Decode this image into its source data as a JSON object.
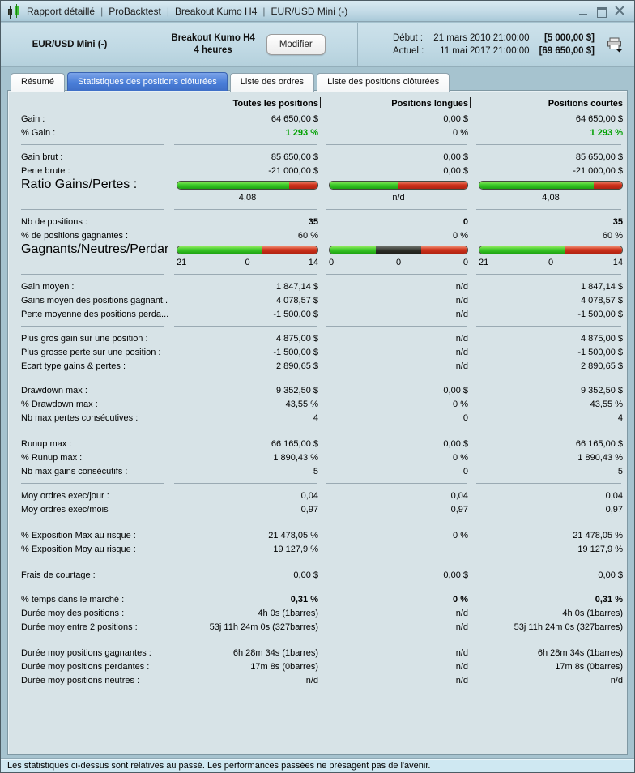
{
  "window": {
    "title_segments": [
      "Rapport détaillé",
      "ProBacktest",
      "Breakout Kumo H4",
      "EUR/USD Mini (-)"
    ],
    "title_separator": "|"
  },
  "header": {
    "instrument": "EUR/USD Mini (-)",
    "system_name": "Breakout Kumo H4",
    "timeframe": "4 heures",
    "modify_button": "Modifier",
    "start_label": "Début :",
    "start_date": "21 mars 2010 21:00:00",
    "start_equity": "[5 000,00 $]",
    "current_label": "Actuel :",
    "current_date": "11 mai 2017 21:00:00",
    "current_equity": "[69 650,00 $]"
  },
  "tabs": [
    {
      "label": "Résumé",
      "active": false
    },
    {
      "label": "Statistiques des positions clôturées",
      "active": true
    },
    {
      "label": "Liste des ordres",
      "active": false
    },
    {
      "label": "Liste des positions clôturées",
      "active": false
    }
  ],
  "table": {
    "columns": [
      "Toutes les positions",
      "Positions longues",
      "Positions courtes"
    ],
    "bar_colors": {
      "g": "#2eb521",
      "r": "#c83420",
      "k": "#2b2c26"
    },
    "rows": [
      {
        "t": "v",
        "label": "Gain :",
        "v": [
          "64 650,00 $",
          "0,00 $",
          "64 650,00 $"
        ]
      },
      {
        "t": "v",
        "label": "% Gain :",
        "v": [
          "1 293 %",
          "0 %",
          "1 293 %"
        ],
        "vc": [
          "green",
          "",
          "green"
        ]
      },
      {
        "t": "d"
      },
      {
        "t": "v",
        "label": "Gain brut :",
        "v": [
          "85 650,00 $",
          "0,00 $",
          "85 650,00 $"
        ]
      },
      {
        "t": "v",
        "label": "Perte brute :",
        "v": [
          "-21 000,00 $",
          "0,00 $",
          "-21 000,00 $"
        ]
      },
      {
        "t": "b",
        "label": "Ratio Gains/Pertes :",
        "bars": [
          [
            [
              "g",
              80
            ],
            [
              "r",
              20
            ]
          ],
          [
            [
              "g",
              50
            ],
            [
              "r",
              50
            ]
          ],
          [
            [
              "g",
              80
            ],
            [
              "r",
              20
            ]
          ]
        ]
      },
      {
        "t": "c",
        "v": [
          "4,08",
          "n/d",
          "4,08"
        ]
      },
      {
        "t": "d"
      },
      {
        "t": "v",
        "label": "Nb de positions :",
        "v": [
          "35",
          "0",
          "35"
        ],
        "vc": [
          "bold",
          "bold",
          "bold"
        ]
      },
      {
        "t": "v",
        "label": "% de positions gagnantes :",
        "v": [
          "60 %",
          "0 %",
          "60 %"
        ]
      },
      {
        "t": "b",
        "label": "Gagnants/Neutres/Perdants :",
        "bars": [
          [
            [
              "g",
              60
            ],
            [
              "r",
              40
            ]
          ],
          [
            [
              "g",
              33.4
            ],
            [
              "k",
              33.3
            ],
            [
              "r",
              33.3
            ]
          ],
          [
            [
              "g",
              60
            ],
            [
              "r",
              40
            ]
          ]
        ]
      },
      {
        "t": "c3",
        "v": [
          [
            "21",
            "0",
            "14"
          ],
          [
            "0",
            "0",
            "0"
          ],
          [
            "21",
            "0",
            "14"
          ]
        ]
      },
      {
        "t": "d"
      },
      {
        "t": "v",
        "label": "Gain moyen :",
        "v": [
          "1 847,14 $",
          "n/d",
          "1 847,14 $"
        ]
      },
      {
        "t": "v",
        "label": "Gains moyen des positions gagnant...",
        "v": [
          "4 078,57 $",
          "n/d",
          "4 078,57 $"
        ]
      },
      {
        "t": "v",
        "label": "Perte moyenne des positions perda...",
        "v": [
          "-1 500,00 $",
          "n/d",
          "-1 500,00 $"
        ]
      },
      {
        "t": "d"
      },
      {
        "t": "v",
        "label": "Plus gros gain sur une position :",
        "v": [
          "4 875,00 $",
          "n/d",
          "4 875,00 $"
        ]
      },
      {
        "t": "v",
        "label": "Plus grosse perte sur une position :",
        "v": [
          "-1 500,00 $",
          "n/d",
          "-1 500,00 $"
        ]
      },
      {
        "t": "v",
        "label": "Ecart type gains & pertes :",
        "v": [
          "2 890,65 $",
          "n/d",
          "2 890,65 $"
        ]
      },
      {
        "t": "d"
      },
      {
        "t": "v",
        "label": "Drawdown max :",
        "v": [
          "9 352,50 $",
          "0,00 $",
          "9 352,50 $"
        ]
      },
      {
        "t": "v",
        "label": "% Drawdown max :",
        "v": [
          "43,55 %",
          "0 %",
          "43,55 %"
        ]
      },
      {
        "t": "v",
        "label": "Nb max pertes consécutives :",
        "v": [
          "4",
          "0",
          "4"
        ]
      },
      {
        "t": "s"
      },
      {
        "t": "v",
        "label": "Runup max :",
        "v": [
          "66 165,00 $",
          "0,00 $",
          "66 165,00 $"
        ]
      },
      {
        "t": "v",
        "label": "% Runup max :",
        "v": [
          "1 890,43 %",
          "0 %",
          "1 890,43 %"
        ]
      },
      {
        "t": "v",
        "label": "Nb max gains consécutifs :",
        "v": [
          "5",
          "0",
          "5"
        ]
      },
      {
        "t": "d"
      },
      {
        "t": "v",
        "label": "Moy ordres exec/jour :",
        "v": [
          "0,04",
          "0,04",
          "0,04"
        ]
      },
      {
        "t": "v",
        "label": "Moy ordres exec/mois",
        "v": [
          "0,97",
          "0,97",
          "0,97"
        ]
      },
      {
        "t": "s"
      },
      {
        "t": "v",
        "label": "% Exposition Max au risque :",
        "v": [
          "21 478,05 %",
          "0 %",
          "21 478,05 %"
        ]
      },
      {
        "t": "v",
        "label": "% Exposition Moy au risque :",
        "v": [
          "19 127,9 %",
          "",
          "19 127,9 %"
        ]
      },
      {
        "t": "s"
      },
      {
        "t": "v",
        "label": "Frais de courtage :",
        "v": [
          "0,00 $",
          "0,00 $",
          "0,00 $"
        ]
      },
      {
        "t": "d"
      },
      {
        "t": "v",
        "label": "% temps dans le marché :",
        "v": [
          "0,31 %",
          "0 %",
          "0,31 %"
        ],
        "vc": [
          "bold",
          "bold",
          "bold"
        ]
      },
      {
        "t": "v",
        "label": "Durée moy des positions :",
        "v": [
          "4h 0s (1barres)",
          "n/d",
          "4h 0s (1barres)"
        ]
      },
      {
        "t": "v",
        "label": "Durée moy entre 2 positions :",
        "v": [
          "53j 11h 24m 0s (327barres)",
          "n/d",
          "53j 11h 24m 0s (327barres)"
        ]
      },
      {
        "t": "s"
      },
      {
        "t": "v",
        "label": "Durée moy positions gagnantes :",
        "v": [
          "6h 28m 34s (1barres)",
          "n/d",
          "6h 28m 34s (1barres)"
        ]
      },
      {
        "t": "v",
        "label": "Durée moy positions perdantes :",
        "v": [
          "17m 8s (0barres)",
          "n/d",
          "17m 8s (0barres)"
        ]
      },
      {
        "t": "v",
        "label": "Durée moy positions neutres :",
        "v": [
          "n/d",
          "n/d",
          "n/d"
        ]
      }
    ]
  },
  "footer": {
    "disclaimer": "Les statistiques ci-dessus sont relatives au passé. Les performances passées ne présagent pas de l'avenir."
  }
}
